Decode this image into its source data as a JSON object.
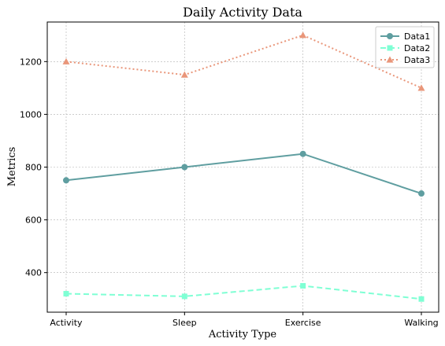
{
  "chart_data": {
    "type": "line",
    "title": "Daily Activity Data",
    "xlabel": "Activity Type",
    "ylabel": "Metrics",
    "categories": [
      "Activity",
      "Sleep",
      "Exercise",
      "Walking"
    ],
    "ylim": [
      250,
      1350
    ],
    "yticks": [
      400,
      600,
      800,
      1000,
      1200
    ],
    "grid": true,
    "legend_position": "top-right",
    "series": [
      {
        "name": "Data1",
        "values": [
          750,
          800,
          850,
          700
        ],
        "color": "#5f9ea0",
        "marker": "circle",
        "line_style": "solid"
      },
      {
        "name": "Data2",
        "values": [
          320,
          310,
          350,
          300
        ],
        "color": "#7fffd4",
        "marker": "square",
        "line_style": "dashed"
      },
      {
        "name": "Data3",
        "values": [
          1200,
          1150,
          1300,
          1100
        ],
        "color": "#e9967a",
        "marker": "triangle",
        "line_style": "dotted"
      }
    ]
  }
}
